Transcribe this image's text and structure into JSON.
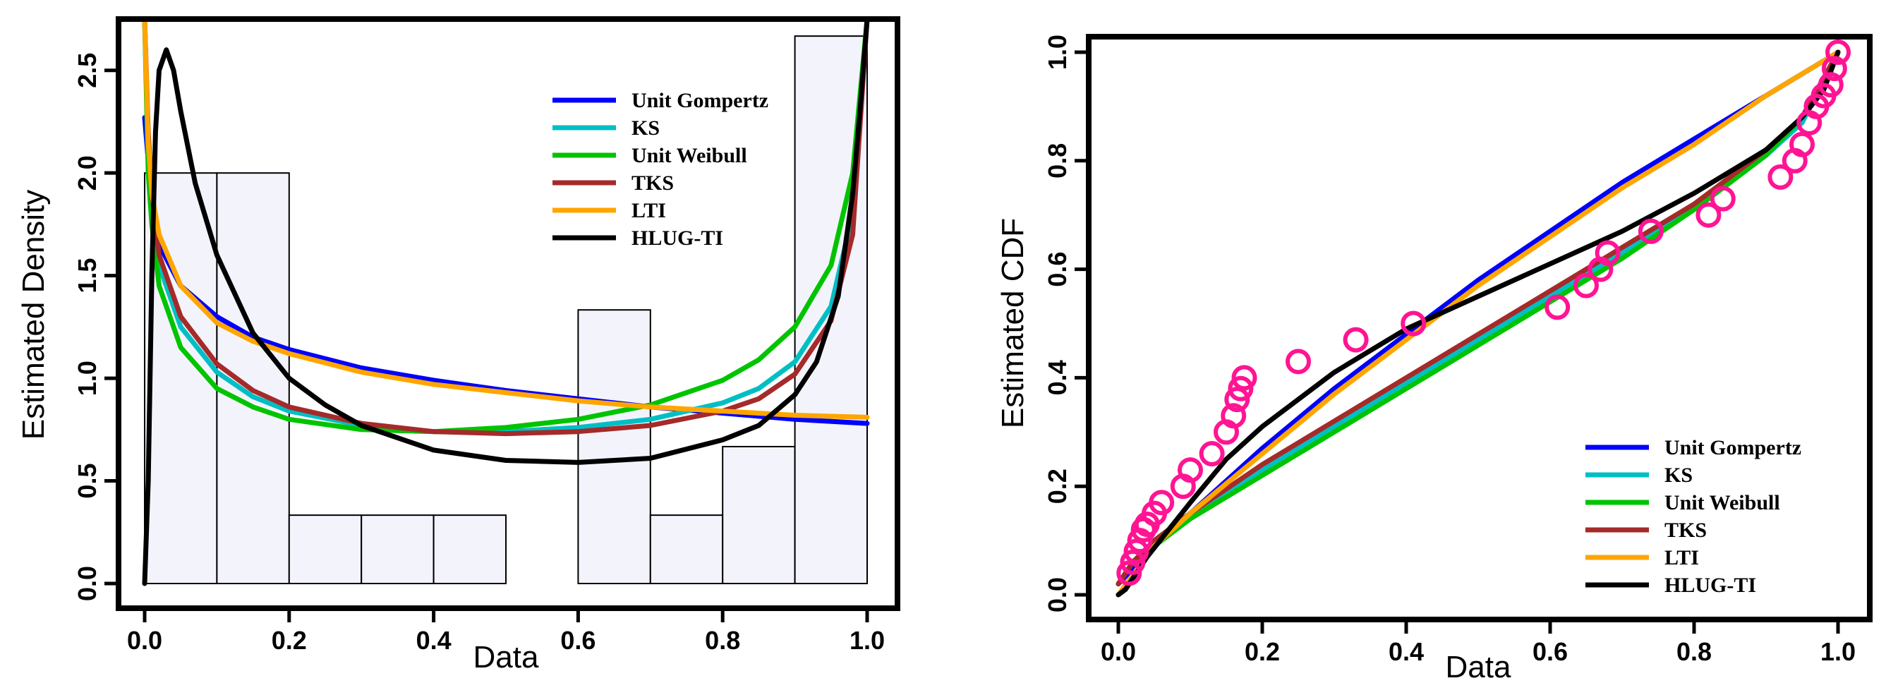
{
  "chart_data": [
    {
      "type": "histogram",
      "xlabel": "Data",
      "ylabel": "Estimated Density",
      "xlim": [
        0,
        1
      ],
      "ylim": [
        0,
        2.75
      ],
      "xticks": [
        "0.0",
        "0.2",
        "0.4",
        "0.6",
        "0.8",
        "1.0"
      ],
      "yticks": [
        "0.0",
        "0.5",
        "1.0",
        "1.5",
        "2.0",
        "2.5"
      ],
      "histogram": {
        "bin_edges": [
          0,
          0.1,
          0.2,
          0.3,
          0.4,
          0.5,
          0.6,
          0.7,
          0.8,
          0.9,
          1.0
        ],
        "densities": [
          2.0,
          2.0,
          0.333,
          0.333,
          0.333,
          0,
          1.333,
          0.333,
          0.667,
          2.667
        ],
        "fill": "#f3f4fb"
      },
      "legend": [
        {
          "label": "Unit Gompertz",
          "color": "#0000ff"
        },
        {
          "label": "KS",
          "color": "#00bfc4"
        },
        {
          "label": "Unit Weibull",
          "color": "#00c400"
        },
        {
          "label": "TKS",
          "color": "#a52a2a"
        },
        {
          "label": "LTI",
          "color": "#ffa500"
        },
        {
          "label": "HLUG-TI",
          "color": "#000000"
        }
      ],
      "series": [
        {
          "name": "Unit Gompertz",
          "color": "#0000ff",
          "x": [
            0.0,
            0.01,
            0.02,
            0.05,
            0.1,
            0.15,
            0.2,
            0.3,
            0.4,
            0.5,
            0.6,
            0.7,
            0.8,
            0.9,
            1.0
          ],
          "y": [
            2.27,
            1.85,
            1.65,
            1.45,
            1.3,
            1.2,
            1.14,
            1.05,
            0.99,
            0.94,
            0.9,
            0.86,
            0.83,
            0.8,
            0.78
          ]
        },
        {
          "name": "KS",
          "color": "#00bfc4",
          "x": [
            0.0,
            0.005,
            0.01,
            0.02,
            0.05,
            0.1,
            0.15,
            0.2,
            0.3,
            0.4,
            0.5,
            0.6,
            0.7,
            0.8,
            0.85,
            0.9,
            0.95,
            0.98,
            1.0
          ],
          "y": [
            2.75,
            2.1,
            1.85,
            1.55,
            1.25,
            1.03,
            0.91,
            0.84,
            0.77,
            0.74,
            0.74,
            0.76,
            0.8,
            0.88,
            0.95,
            1.08,
            1.35,
            1.8,
            2.75
          ]
        },
        {
          "name": "Unit Weibull",
          "color": "#00c400",
          "x": [
            0.0,
            0.005,
            0.01,
            0.02,
            0.05,
            0.1,
            0.15,
            0.2,
            0.3,
            0.4,
            0.5,
            0.6,
            0.7,
            0.8,
            0.85,
            0.9,
            0.95,
            0.98,
            1.0
          ],
          "y": [
            2.75,
            2.0,
            1.75,
            1.45,
            1.15,
            0.95,
            0.86,
            0.8,
            0.75,
            0.74,
            0.76,
            0.8,
            0.87,
            0.99,
            1.09,
            1.25,
            1.55,
            2.0,
            2.75
          ]
        },
        {
          "name": "TKS",
          "color": "#a52a2a",
          "x": [
            0.0,
            0.005,
            0.01,
            0.02,
            0.05,
            0.1,
            0.15,
            0.2,
            0.3,
            0.4,
            0.5,
            0.6,
            0.7,
            0.8,
            0.85,
            0.9,
            0.95,
            0.98,
            1.0
          ],
          "y": [
            2.75,
            2.2,
            1.9,
            1.6,
            1.3,
            1.07,
            0.94,
            0.86,
            0.78,
            0.74,
            0.73,
            0.74,
            0.77,
            0.84,
            0.9,
            1.02,
            1.28,
            1.7,
            2.75
          ]
        },
        {
          "name": "LTI",
          "color": "#ffa500",
          "x": [
            0.0,
            0.005,
            0.01,
            0.02,
            0.05,
            0.1,
            0.15,
            0.2,
            0.3,
            0.4,
            0.5,
            0.6,
            0.7,
            0.8,
            0.9,
            1.0
          ],
          "y": [
            2.75,
            2.15,
            1.9,
            1.7,
            1.45,
            1.27,
            1.18,
            1.12,
            1.03,
            0.97,
            0.93,
            0.89,
            0.86,
            0.84,
            0.82,
            0.81
          ]
        },
        {
          "name": "HLUG-TI",
          "color": "#000000",
          "x": [
            0.0,
            0.005,
            0.01,
            0.015,
            0.02,
            0.03,
            0.04,
            0.05,
            0.07,
            0.1,
            0.15,
            0.2,
            0.25,
            0.3,
            0.4,
            0.5,
            0.6,
            0.7,
            0.8,
            0.85,
            0.9,
            0.93,
            0.96,
            0.98,
            0.99,
            1.0
          ],
          "y": [
            0.0,
            0.5,
            1.5,
            2.2,
            2.5,
            2.6,
            2.5,
            2.3,
            1.95,
            1.6,
            1.22,
            1.0,
            0.87,
            0.77,
            0.65,
            0.6,
            0.59,
            0.61,
            0.7,
            0.77,
            0.92,
            1.08,
            1.4,
            1.9,
            2.3,
            2.75
          ]
        }
      ]
    },
    {
      "type": "line",
      "xlabel": "Data",
      "ylabel": "Estimated CDF",
      "xlim": [
        0,
        1
      ],
      "ylim": [
        0,
        1
      ],
      "xticks": [
        "0.0",
        "0.2",
        "0.4",
        "0.6",
        "0.8",
        "1.0"
      ],
      "yticks": [
        "0.0",
        "0.2",
        "0.4",
        "0.6",
        "0.8",
        "1.0"
      ],
      "empirical_points": {
        "color": "#ff1493",
        "x": [
          0.015,
          0.02,
          0.025,
          0.03,
          0.035,
          0.04,
          0.05,
          0.06,
          0.09,
          0.1,
          0.13,
          0.15,
          0.16,
          0.165,
          0.17,
          0.175,
          0.25,
          0.33,
          0.41,
          0.61,
          0.65,
          0.67,
          0.68,
          0.74,
          0.82,
          0.84,
          0.92,
          0.94,
          0.95,
          0.96,
          0.97,
          0.98,
          0.99,
          0.995,
          1.0
        ],
        "y": [
          0.04,
          0.06,
          0.08,
          0.1,
          0.12,
          0.13,
          0.15,
          0.17,
          0.2,
          0.23,
          0.26,
          0.3,
          0.33,
          0.36,
          0.38,
          0.4,
          0.43,
          0.47,
          0.5,
          0.53,
          0.57,
          0.6,
          0.63,
          0.67,
          0.7,
          0.73,
          0.77,
          0.8,
          0.83,
          0.87,
          0.9,
          0.92,
          0.94,
          0.97,
          1.0
        ]
      },
      "legend": [
        {
          "label": "Unit Gompertz",
          "color": "#0000ff"
        },
        {
          "label": "KS",
          "color": "#00bfc4"
        },
        {
          "label": "Unit Weibull",
          "color": "#00c400"
        },
        {
          "label": "TKS",
          "color": "#a52a2a"
        },
        {
          "label": "LTI",
          "color": "#ffa500"
        },
        {
          "label": "HLUG-TI",
          "color": "#000000"
        }
      ],
      "series": [
        {
          "name": "Unit Gompertz",
          "color": "#0000ff",
          "x": [
            0.0,
            0.05,
            0.1,
            0.2,
            0.3,
            0.4,
            0.5,
            0.6,
            0.7,
            0.8,
            0.9,
            1.0
          ],
          "y": [
            0.02,
            0.09,
            0.15,
            0.27,
            0.38,
            0.48,
            0.58,
            0.67,
            0.76,
            0.84,
            0.92,
            1.0
          ]
        },
        {
          "name": "KS",
          "color": "#00bfc4",
          "x": [
            0.0,
            0.02,
            0.05,
            0.1,
            0.2,
            0.3,
            0.4,
            0.5,
            0.6,
            0.7,
            0.8,
            0.9,
            0.95,
            1.0
          ],
          "y": [
            0.02,
            0.06,
            0.1,
            0.15,
            0.23,
            0.31,
            0.39,
            0.47,
            0.55,
            0.63,
            0.71,
            0.81,
            0.87,
            1.0
          ]
        },
        {
          "name": "Unit Weibull",
          "color": "#00c400",
          "x": [
            0.0,
            0.02,
            0.05,
            0.1,
            0.2,
            0.3,
            0.4,
            0.5,
            0.6,
            0.7,
            0.8,
            0.9,
            0.95,
            1.0
          ],
          "y": [
            0.02,
            0.06,
            0.09,
            0.14,
            0.22,
            0.3,
            0.38,
            0.46,
            0.54,
            0.62,
            0.71,
            0.81,
            0.88,
            1.0
          ]
        },
        {
          "name": "TKS",
          "color": "#a52a2a",
          "x": [
            0.0,
            0.02,
            0.05,
            0.1,
            0.2,
            0.3,
            0.4,
            0.5,
            0.6,
            0.7,
            0.8,
            0.9,
            0.95,
            1.0
          ],
          "y": [
            0.02,
            0.06,
            0.1,
            0.15,
            0.24,
            0.32,
            0.4,
            0.48,
            0.56,
            0.64,
            0.72,
            0.82,
            0.88,
            1.0
          ]
        },
        {
          "name": "LTI",
          "color": "#ffa500",
          "x": [
            0.0,
            0.05,
            0.1,
            0.2,
            0.3,
            0.4,
            0.5,
            0.6,
            0.7,
            0.8,
            0.9,
            1.0
          ],
          "y": [
            0.0,
            0.09,
            0.15,
            0.26,
            0.37,
            0.47,
            0.57,
            0.66,
            0.75,
            0.83,
            0.92,
            1.0
          ]
        },
        {
          "name": "HLUG-TI",
          "color": "#000000",
          "x": [
            0.0,
            0.01,
            0.02,
            0.04,
            0.07,
            0.1,
            0.15,
            0.2,
            0.3,
            0.4,
            0.5,
            0.6,
            0.7,
            0.8,
            0.9,
            0.95,
            0.98,
            1.0
          ],
          "y": [
            0.0,
            0.01,
            0.03,
            0.07,
            0.12,
            0.17,
            0.25,
            0.31,
            0.41,
            0.49,
            0.55,
            0.61,
            0.67,
            0.74,
            0.82,
            0.88,
            0.93,
            1.0
          ]
        }
      ]
    }
  ]
}
